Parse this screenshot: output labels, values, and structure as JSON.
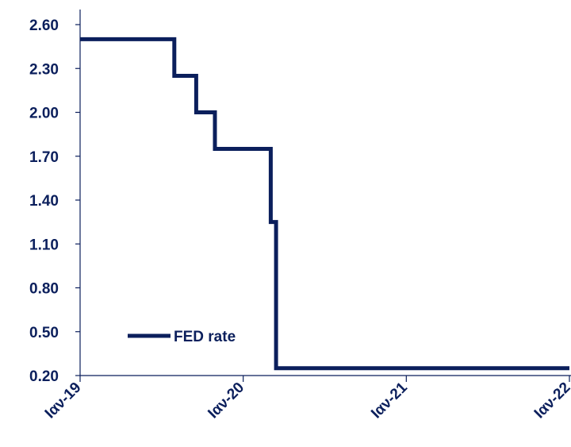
{
  "chart_data": {
    "type": "line",
    "step": true,
    "title": "",
    "xlabel": "",
    "ylabel": "",
    "ylim": [
      0.2,
      2.6
    ],
    "yticks": [
      "0.20",
      "0.50",
      "0.80",
      "1.10",
      "1.40",
      "1.70",
      "2.00",
      "2.30",
      "2.60"
    ],
    "xticks": [
      "Ιαν-19",
      "Ιαν-20",
      "Ιαν-21",
      "Ιαν-22"
    ],
    "xlim": [
      "2019-01-01",
      "2022-01-01"
    ],
    "grid": false,
    "legend": {
      "position": "bottom-left"
    },
    "colors": {
      "axis": "#0b1f5c",
      "line": "#0b1f5c"
    },
    "series": [
      {
        "name": "FED rate",
        "points": [
          {
            "x": "2019-01-01",
            "y": 2.5
          },
          {
            "x": "2019-07-31",
            "y": 2.25
          },
          {
            "x": "2019-09-18",
            "y": 2.0
          },
          {
            "x": "2019-10-30",
            "y": 1.75
          },
          {
            "x": "2020-03-03",
            "y": 1.25
          },
          {
            "x": "2020-03-15",
            "y": 0.25
          },
          {
            "x": "2022-01-01",
            "y": 0.25
          }
        ]
      }
    ]
  }
}
